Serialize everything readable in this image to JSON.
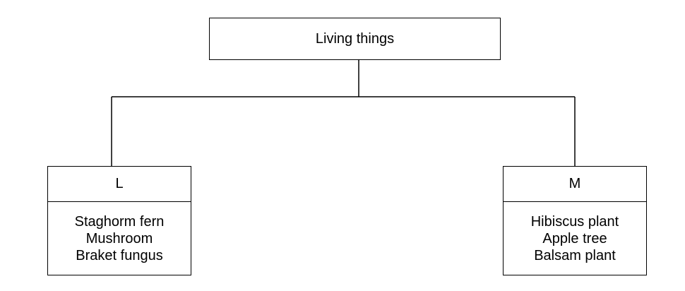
{
  "diagram": {
    "root": {
      "label": "Living things"
    },
    "groups": [
      {
        "label": "L",
        "items": [
          "Staghorm fern",
          "Mushroom",
          "Braket fungus"
        ]
      },
      {
        "label": "M",
        "items": [
          "Hibiscus plant",
          "Apple tree",
          "Balsam plant"
        ]
      }
    ]
  }
}
